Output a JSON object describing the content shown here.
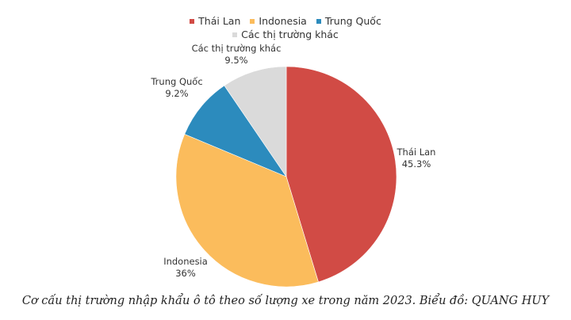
{
  "chart_data": {
    "type": "pie",
    "title": "",
    "categories": [
      "Thái Lan",
      "Indonesia",
      "Trung Quốc",
      "Các thị trường khác"
    ],
    "values": [
      45.3,
      36,
      9.2,
      9.5
    ],
    "value_labels": [
      "45.3%",
      "36%",
      "9.2%",
      "9.5%"
    ],
    "colors": [
      "#d14b45",
      "#fbbc5c",
      "#2c8bbd",
      "#dadada"
    ],
    "start_angle": "12 o'clock, clockwise",
    "legend_position": "top"
  },
  "legend": {
    "items": [
      {
        "label": "Thái Lan",
        "color": "#d14b45"
      },
      {
        "label": "Indonesia",
        "color": "#fbbc5c"
      },
      {
        "label": "Trung Quốc",
        "color": "#2c8bbd"
      },
      {
        "label": "Các thị trường khác",
        "color": "#dadada"
      }
    ]
  },
  "labels": {
    "thai_lan": {
      "name": "Thái Lan",
      "pct": "45.3%"
    },
    "indonesia": {
      "name": "Indonesia",
      "pct": "36%"
    },
    "trung_quoc": {
      "name": "Trung Quốc",
      "pct": "9.2%"
    },
    "khac": {
      "name": "Các thị trường khác",
      "pct": "9.5%"
    }
  },
  "caption": "Cơ cấu thị trường nhập khẩu ô tô theo số lượng xe trong năm 2023. Biểu đồ: QUANG HUY"
}
